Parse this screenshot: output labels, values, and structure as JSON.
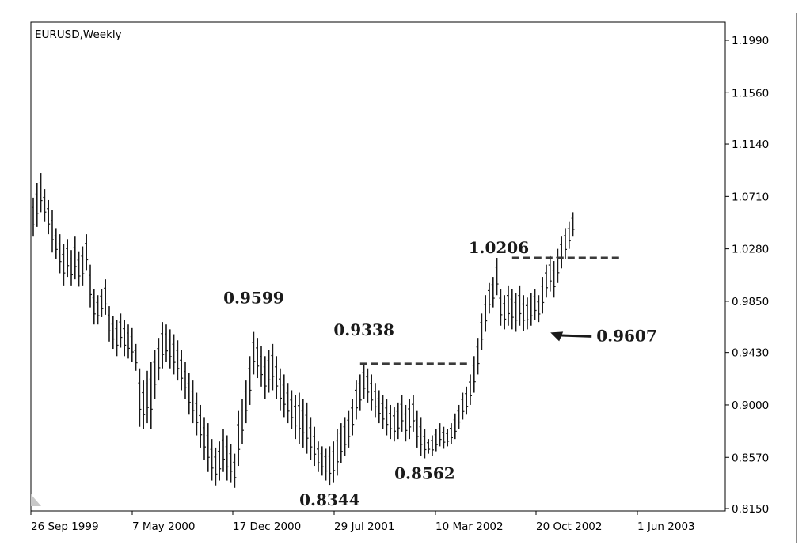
{
  "chart_data": {
    "type": "bar",
    "subtype": "ohlc-bars",
    "title": "EURUSD,Weekly",
    "xlabel": "",
    "ylabel": "",
    "ylim": [
      0.815,
      1.199
    ],
    "grid": false,
    "legend": "none",
    "y_ticks": [
      "1.1990",
      "1.1560",
      "1.1140",
      "1.0710",
      "1.0280",
      "0.9850",
      "0.9430",
      "0.9000",
      "0.8570",
      "0.8150"
    ],
    "x_ticks": [
      "26 Sep 1999",
      "7 May 2000",
      "17 Dec 2000",
      "29 Jul 2001",
      "10 Mar 2002",
      "20 Oct 2002",
      "1 Jun 2003"
    ],
    "series": [
      {
        "bars": [
          [
            1.07,
            1.038
          ],
          [
            1.082,
            1.046
          ],
          [
            1.09,
            1.058
          ],
          [
            1.077,
            1.05
          ],
          [
            1.068,
            1.04
          ],
          [
            1.06,
            1.025
          ],
          [
            1.045,
            1.02
          ],
          [
            1.04,
            1.008
          ],
          [
            1.032,
            0.998
          ],
          [
            1.036,
            1.005
          ],
          [
            1.027,
            0.998
          ],
          [
            1.038,
            1.003
          ],
          [
            1.026,
            0.997
          ],
          [
            1.03,
            0.998
          ],
          [
            1.04,
            1.01
          ],
          [
            1.015,
            0.98
          ],
          [
            0.995,
            0.966
          ],
          [
            0.99,
            0.966
          ],
          [
            0.995,
            0.972
          ],
          [
            1.003,
            0.974
          ],
          [
            0.981,
            0.952
          ],
          [
            0.973,
            0.946
          ],
          [
            0.97,
            0.94
          ],
          [
            0.975,
            0.947
          ],
          [
            0.97,
            0.94
          ],
          [
            0.966,
            0.938
          ],
          [
            0.963,
            0.935
          ],
          [
            0.95,
            0.928
          ],
          [
            0.93,
            0.882
          ],
          [
            0.92,
            0.88
          ],
          [
            0.928,
            0.885
          ],
          [
            0.935,
            0.88
          ],
          [
            0.945,
            0.905
          ],
          [
            0.955,
            0.92
          ],
          [
            0.968,
            0.93
          ],
          [
            0.966,
            0.935
          ],
          [
            0.962,
            0.93
          ],
          [
            0.958,
            0.925
          ],
          [
            0.953,
            0.92
          ],
          [
            0.945,
            0.912
          ],
          [
            0.935,
            0.905
          ],
          [
            0.926,
            0.892
          ],
          [
            0.92,
            0.885
          ],
          [
            0.91,
            0.875
          ],
          [
            0.9,
            0.865
          ],
          [
            0.89,
            0.855
          ],
          [
            0.885,
            0.845
          ],
          [
            0.872,
            0.838
          ],
          [
            0.865,
            0.834
          ],
          [
            0.87,
            0.838
          ],
          [
            0.88,
            0.845
          ],
          [
            0.875,
            0.838
          ],
          [
            0.868,
            0.836
          ],
          [
            0.86,
            0.832
          ],
          [
            0.895,
            0.85
          ],
          [
            0.905,
            0.868
          ],
          [
            0.92,
            0.885
          ],
          [
            0.94,
            0.9
          ],
          [
            0.9599,
            0.925
          ],
          [
            0.955,
            0.922
          ],
          [
            0.948,
            0.915
          ],
          [
            0.94,
            0.905
          ],
          [
            0.945,
            0.91
          ],
          [
            0.95,
            0.912
          ],
          [
            0.94,
            0.905
          ],
          [
            0.93,
            0.895
          ],
          [
            0.925,
            0.89
          ],
          [
            0.918,
            0.885
          ],
          [
            0.912,
            0.88
          ],
          [
            0.908,
            0.872
          ],
          [
            0.91,
            0.868
          ],
          [
            0.905,
            0.865
          ],
          [
            0.902,
            0.86
          ],
          [
            0.89,
            0.855
          ],
          [
            0.882,
            0.85
          ],
          [
            0.87,
            0.845
          ],
          [
            0.866,
            0.842
          ],
          [
            0.864,
            0.838
          ],
          [
            0.866,
            0.8344
          ],
          [
            0.87,
            0.836
          ],
          [
            0.88,
            0.842
          ],
          [
            0.885,
            0.852
          ],
          [
            0.89,
            0.858
          ],
          [
            0.895,
            0.865
          ],
          [
            0.905,
            0.875
          ],
          [
            0.92,
            0.888
          ],
          [
            0.925,
            0.895
          ],
          [
            0.9338,
            0.905
          ],
          [
            0.93,
            0.902
          ],
          [
            0.925,
            0.895
          ],
          [
            0.918,
            0.89
          ],
          [
            0.912,
            0.885
          ],
          [
            0.908,
            0.88
          ],
          [
            0.905,
            0.875
          ],
          [
            0.9,
            0.872
          ],
          [
            0.898,
            0.87
          ],
          [
            0.902,
            0.872
          ],
          [
            0.908,
            0.878
          ],
          [
            0.9,
            0.87
          ],
          [
            0.905,
            0.872
          ],
          [
            0.908,
            0.878
          ],
          [
            0.895,
            0.865
          ],
          [
            0.89,
            0.858
          ],
          [
            0.88,
            0.8562
          ],
          [
            0.872,
            0.86
          ],
          [
            0.875,
            0.858
          ],
          [
            0.88,
            0.862
          ],
          [
            0.885,
            0.866
          ],
          [
            0.882,
            0.864
          ],
          [
            0.88,
            0.866
          ],
          [
            0.885,
            0.868
          ],
          [
            0.893,
            0.872
          ],
          [
            0.9,
            0.88
          ],
          [
            0.91,
            0.888
          ],
          [
            0.915,
            0.892
          ],
          [
            0.925,
            0.9
          ],
          [
            0.94,
            0.91
          ],
          [
            0.955,
            0.925
          ],
          [
            0.975,
            0.945
          ],
          [
            0.99,
            0.96
          ],
          [
            1.0,
            0.975
          ],
          [
            1.005,
            0.98
          ],
          [
            1.0206,
            0.99
          ],
          [
            0.995,
            0.965
          ],
          [
            0.99,
            0.962
          ],
          [
            0.998,
            0.965
          ],
          [
            0.995,
            0.962
          ],
          [
            0.992,
            0.96
          ],
          [
            0.998,
            0.965
          ],
          [
            0.99,
            0.9607
          ],
          [
            0.988,
            0.962
          ],
          [
            0.992,
            0.965
          ],
          [
            0.995,
            0.97
          ],
          [
            0.99,
            0.968
          ],
          [
            1.005,
            0.975
          ],
          [
            1.015,
            0.988
          ],
          [
            1.022,
            0.993
          ],
          [
            1.018,
            0.988
          ],
          [
            1.028,
            1.0
          ],
          [
            1.038,
            1.012
          ],
          [
            1.045,
            1.02
          ],
          [
            1.05,
            1.028
          ],
          [
            1.058,
            1.038
          ]
        ]
      }
    ],
    "annotations": [
      {
        "text": "0.9599",
        "bar": 58,
        "value": 0.9599,
        "anchor": "above"
      },
      {
        "text": "0.9338",
        "bar": 87,
        "value": 0.9338,
        "anchor": "above"
      },
      {
        "text": "0.8344",
        "bar": 78,
        "value": 0.8344,
        "anchor": "below"
      },
      {
        "text": "0.8562",
        "bar": 103,
        "value": 0.8562,
        "anchor": "below"
      },
      {
        "text": "1.0206",
        "bar": 127,
        "value": 1.0206,
        "anchor": "above-left"
      },
      {
        "text": "0.9607",
        "bar": 134,
        "value": 0.9607,
        "anchor": "arrow-right"
      }
    ],
    "reference_lines": [
      {
        "value": 0.9338,
        "from_bar": 86,
        "to_bar": 115,
        "style": "dashed"
      },
      {
        "value": 1.0206,
        "from_bar": 126,
        "to_bar": 155,
        "style": "dashed"
      }
    ],
    "colors": {
      "bar": "#1a1a1a",
      "reference_line": "#3a3a3a",
      "annotation": "#1a1a1a",
      "axis": "#000000"
    }
  }
}
